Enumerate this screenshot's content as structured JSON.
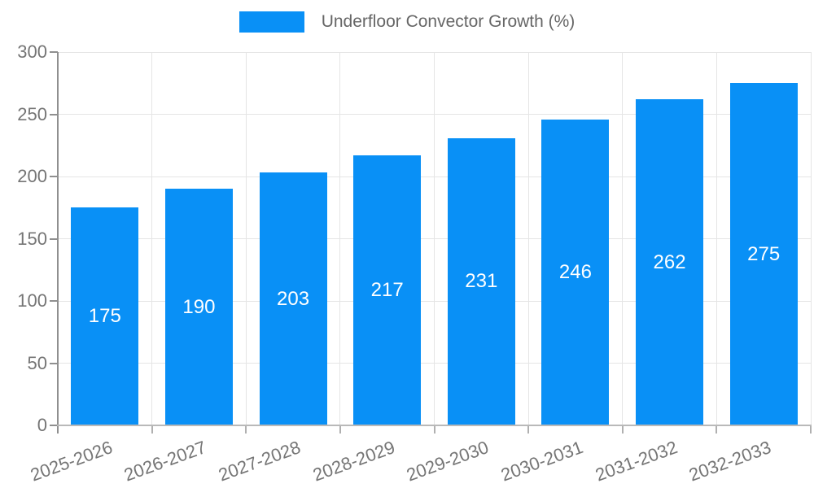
{
  "legend": {
    "label": "Underfloor Convector Growth (%)"
  },
  "chart_data": {
    "type": "bar",
    "title": "Underfloor Convector Growth (%)",
    "categories": [
      "2025-2026",
      "2026-2027",
      "2027-2028",
      "2028-2029",
      "2029-2030",
      "2030-2031",
      "2031-2032",
      "2032-2033"
    ],
    "values": [
      175,
      190,
      203,
      217,
      231,
      246,
      262,
      275
    ],
    "xlabel": "",
    "ylabel": "",
    "ylim": [
      0,
      300
    ],
    "yticks": [
      0,
      50,
      100,
      150,
      200,
      250,
      300
    ],
    "grid": true,
    "legend_position": "top",
    "colors": {
      "bar": "#0990F6",
      "bar_value_text": "#ffffff",
      "grid": "#e5e5e5",
      "y_axis": "#8f8f8f",
      "x_axis": "#b9b9b9",
      "x_tick_mark": "#b0b0b0",
      "tick_text": "#757575",
      "legend_text": "#666666"
    }
  }
}
